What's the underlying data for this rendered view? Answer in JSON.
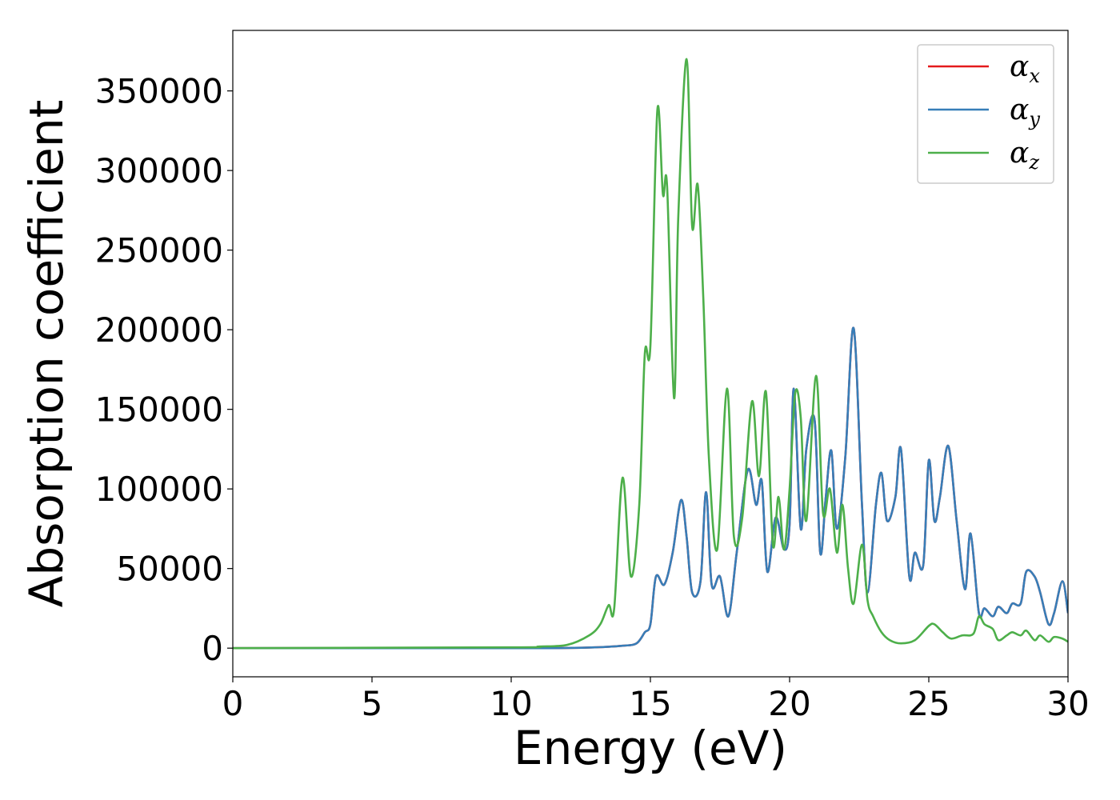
{
  "chart_data": {
    "type": "line",
    "title": "",
    "xlabel": "Energy (eV)",
    "ylabel": "Absorption coefficient",
    "xlim": [
      0,
      30
    ],
    "ylim": [
      -18000,
      388000
    ],
    "grid": false,
    "legend_position": "top-right",
    "x_ticks": [
      {
        "value": 0,
        "label": "0"
      },
      {
        "value": 5,
        "label": "5"
      },
      {
        "value": 10,
        "label": "10"
      },
      {
        "value": 15,
        "label": "15"
      },
      {
        "value": 20,
        "label": "20"
      },
      {
        "value": 25,
        "label": "25"
      },
      {
        "value": 30,
        "label": "30"
      }
    ],
    "y_ticks": [
      {
        "value": 0,
        "label": "0"
      },
      {
        "value": 50000,
        "label": "50000"
      },
      {
        "value": 100000,
        "label": "100000"
      },
      {
        "value": 150000,
        "label": "150000"
      },
      {
        "value": 200000,
        "label": "200000"
      },
      {
        "value": 250000,
        "label": "250000"
      },
      {
        "value": 300000,
        "label": "300000"
      },
      {
        "value": 350000,
        "label": "350000"
      }
    ],
    "series": [
      {
        "name": "α_x",
        "legend_base": "α",
        "legend_sub": "x",
        "color": "#e41a1c",
        "x": [
          0,
          10,
          12,
          13,
          14,
          14.5,
          14.8,
          15.0,
          15.2,
          15.5,
          15.8,
          16.1,
          16.3,
          16.5,
          16.8,
          17.0,
          17.2,
          17.5,
          17.8,
          18.1,
          18.5,
          18.8,
          19.0,
          19.2,
          19.5,
          19.8,
          20.0,
          20.15,
          20.4,
          20.6,
          20.9,
          21.1,
          21.3,
          21.5,
          21.7,
          22.0,
          22.3,
          22.6,
          22.8,
          23.1,
          23.3,
          23.5,
          23.8,
          24.0,
          24.3,
          24.5,
          24.8,
          25.0,
          25.2,
          25.4,
          25.7,
          26.0,
          26.3,
          26.5,
          26.8,
          27.0,
          27.3,
          27.5,
          27.8,
          28.0,
          28.3,
          28.5,
          28.8,
          29.0,
          29.3,
          29.5,
          29.8,
          30.0
        ],
        "y": [
          0,
          0,
          100,
          500,
          1500,
          3000,
          10000,
          15000,
          45000,
          40000,
          60000,
          93000,
          70000,
          35000,
          42000,
          98000,
          40000,
          45000,
          20000,
          60000,
          112000,
          90000,
          105000,
          48000,
          82000,
          62000,
          78000,
          163000,
          75000,
          125000,
          143000,
          60000,
          95000,
          124000,
          75000,
          120000,
          201000,
          90000,
          35000,
          90000,
          110000,
          80000,
          95000,
          125000,
          45000,
          60000,
          52000,
          118000,
          80000,
          95000,
          127000,
          80000,
          37000,
          72000,
          22000,
          25000,
          20000,
          26000,
          22000,
          28000,
          28000,
          48000,
          45000,
          35000,
          15000,
          22000,
          42000,
          22000
        ]
      },
      {
        "name": "α_y",
        "legend_base": "α",
        "legend_sub": "y",
        "color": "#377eb8",
        "x": [
          0,
          10,
          12,
          13,
          14,
          14.5,
          14.8,
          15.0,
          15.2,
          15.5,
          15.8,
          16.1,
          16.3,
          16.5,
          16.8,
          17.0,
          17.2,
          17.5,
          17.8,
          18.1,
          18.5,
          18.8,
          19.0,
          19.2,
          19.5,
          19.8,
          20.0,
          20.15,
          20.4,
          20.6,
          20.9,
          21.1,
          21.3,
          21.5,
          21.7,
          22.0,
          22.3,
          22.6,
          22.8,
          23.1,
          23.3,
          23.5,
          23.8,
          24.0,
          24.3,
          24.5,
          24.8,
          25.0,
          25.2,
          25.4,
          25.7,
          26.0,
          26.3,
          26.5,
          26.8,
          27.0,
          27.3,
          27.5,
          27.8,
          28.0,
          28.3,
          28.5,
          28.8,
          29.0,
          29.3,
          29.5,
          29.8,
          30.0
        ],
        "y": [
          0,
          0,
          100,
          500,
          1500,
          3000,
          10000,
          15000,
          45000,
          40000,
          60000,
          93000,
          70000,
          35000,
          42000,
          98000,
          40000,
          45000,
          20000,
          60000,
          112000,
          90000,
          105000,
          48000,
          82000,
          62000,
          78000,
          163000,
          75000,
          125000,
          143000,
          60000,
          95000,
          124000,
          75000,
          120000,
          201000,
          90000,
          35000,
          90000,
          110000,
          80000,
          95000,
          125000,
          45000,
          60000,
          52000,
          118000,
          80000,
          95000,
          127000,
          80000,
          37000,
          72000,
          22000,
          25000,
          20000,
          26000,
          22000,
          28000,
          28000,
          48000,
          45000,
          35000,
          15000,
          22000,
          42000,
          22000
        ]
      },
      {
        "name": "α_z",
        "legend_base": "α",
        "legend_sub": "z",
        "color": "#4daf4a",
        "x": [
          0,
          10,
          11,
          12,
          12.8,
          13.2,
          13.5,
          13.7,
          14.0,
          14.3,
          14.6,
          14.8,
          15.0,
          15.25,
          15.45,
          15.6,
          15.85,
          16.0,
          16.3,
          16.5,
          16.7,
          16.9,
          17.1,
          17.4,
          17.75,
          18.0,
          18.3,
          18.65,
          18.9,
          19.15,
          19.4,
          19.6,
          19.8,
          20.0,
          20.2,
          20.4,
          20.6,
          20.95,
          21.2,
          21.45,
          21.7,
          21.9,
          22.1,
          22.3,
          22.6,
          22.8,
          23.0,
          23.3,
          23.6,
          24.0,
          24.5,
          25.0,
          25.2,
          25.5,
          25.8,
          26.2,
          26.6,
          26.8,
          27.0,
          27.3,
          27.5,
          27.8,
          28.0,
          28.3,
          28.5,
          28.8,
          29.0,
          29.3,
          29.5,
          29.8,
          30.0
        ],
        "y": [
          0,
          500,
          1000,
          2000,
          8000,
          15000,
          27000,
          25000,
          107000,
          45000,
          90000,
          185000,
          190000,
          338000,
          285000,
          290000,
          157000,
          270000,
          370000,
          265000,
          291000,
          220000,
          120000,
          62000,
          163000,
          70000,
          82000,
          155000,
          108000,
          161000,
          65000,
          95000,
          62000,
          100000,
          160000,
          145000,
          80000,
          171000,
          85000,
          100000,
          60000,
          90000,
          50000,
          28000,
          65000,
          30000,
          20000,
          10000,
          5000,
          3000,
          5000,
          14000,
          15000,
          10000,
          6000,
          8000,
          9000,
          20000,
          15000,
          12000,
          5000,
          8000,
          10000,
          8000,
          11000,
          5000,
          8000,
          4000,
          7000,
          6000,
          4000
        ]
      }
    ]
  }
}
